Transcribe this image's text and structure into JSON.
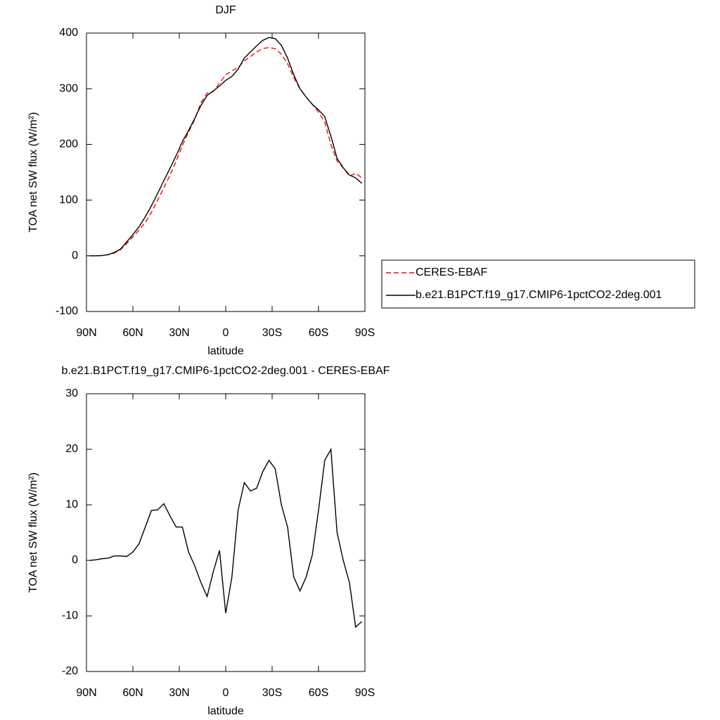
{
  "chart_data": [
    {
      "type": "line",
      "title": "DJF",
      "x_label": "latitude",
      "y_label": "TOA net SW flux (W/m²)",
      "x": [
        88,
        84,
        80,
        76,
        72,
        68,
        64,
        60,
        56,
        52,
        48,
        44,
        40,
        36,
        32,
        28,
        24,
        20,
        16,
        12,
        8,
        4,
        0,
        -4,
        -8,
        -12,
        -16,
        -20,
        -24,
        -28,
        -32,
        -36,
        -40,
        -44,
        -48,
        -52,
        -56,
        -60,
        -64,
        -68,
        -72,
        -76,
        -80,
        -84,
        -88
      ],
      "series": [
        {
          "name": "CERES-EBAF",
          "color": "#ff0000",
          "line_style": "dashed",
          "values": [
            0,
            0,
            0.5,
            2,
            5,
            11,
            22,
            34,
            46,
            60,
            78,
            100,
            122,
            145,
            170,
            198,
            222,
            245,
            275,
            292,
            295,
            310,
            325,
            332,
            338,
            350,
            358,
            366,
            372,
            374,
            372,
            362,
            345,
            320,
            300,
            285,
            272,
            258,
            240,
            200,
            170,
            158,
            143,
            148,
            140
          ]
        },
        {
          "name": "b.e21.B1PCT.f19_g17.CMIP6-1pctCO2-2deg.001",
          "color": "#000000",
          "line_style": "solid",
          "values": [
            0,
            0,
            0.5,
            2,
            6,
            12,
            25,
            38,
            52,
            70,
            90,
            112,
            135,
            157,
            180,
            205,
            225,
            247,
            270,
            288,
            296,
            305,
            315,
            322,
            335,
            355,
            366,
            377,
            387,
            392,
            390,
            378,
            355,
            325,
            300,
            285,
            272,
            262,
            250,
            215,
            175,
            158,
            145,
            140,
            130
          ]
        }
      ],
      "xlim": [
        90,
        -90
      ],
      "xticks": [
        {
          "value": 90,
          "label": "90N"
        },
        {
          "value": 60,
          "label": "60N"
        },
        {
          "value": 30,
          "label": "30N"
        },
        0,
        {
          "value": -30,
          "label": "30S"
        },
        {
          "value": -60,
          "label": "60S"
        },
        {
          "value": -90,
          "label": "90S"
        }
      ],
      "ylim": [
        -100,
        400
      ],
      "yticks": [
        -100,
        0,
        100,
        200,
        300,
        400
      ],
      "legend": "right"
    },
    {
      "type": "line",
      "title": "b.e21.B1PCT.f19_g17.CMIP6-1pctCO2-2deg.001 - CERES-EBAF",
      "x_label": "latitude",
      "y_label": "TOA net SW flux (W/m²)",
      "x": [
        88,
        84,
        80,
        76,
        72,
        68,
        64,
        60,
        56,
        52,
        48,
        44,
        40,
        36,
        32,
        28,
        24,
        20,
        16,
        12,
        8,
        4,
        0,
        -4,
        -8,
        -12,
        -16,
        -20,
        -24,
        -28,
        -32,
        -36,
        -40,
        -44,
        -48,
        -52,
        -56,
        -60,
        -64,
        -68,
        -72,
        -76,
        -80,
        -84,
        -88
      ],
      "series": [
        {
          "name": null,
          "color": "#000000",
          "line_style": "solid",
          "values": [
            0,
            0.1,
            0.3,
            0.4,
            0.8,
            0.8,
            0.7,
            1.5,
            3,
            6,
            9,
            9.1,
            10.2,
            8,
            6,
            6,
            1.5,
            -1,
            -4,
            -6.5,
            -2,
            1.8,
            -9.5,
            -3,
            9,
            14,
            12.5,
            13,
            16,
            18,
            16.5,
            10,
            6,
            -3,
            -5.5,
            -3,
            1,
            9,
            18,
            20,
            5,
            0,
            -4,
            -12,
            -11
          ]
        }
      ],
      "xlim": [
        90,
        -90
      ],
      "xticks": [
        {
          "value": 90,
          "label": "90N"
        },
        {
          "value": 60,
          "label": "60N"
        },
        {
          "value": 30,
          "label": "30N"
        },
        0,
        {
          "value": -30,
          "label": "30S"
        },
        {
          "value": -60,
          "label": "60S"
        },
        {
          "value": -90,
          "label": "90S"
        }
      ],
      "ylim": [
        -20,
        30
      ],
      "yticks": [
        -20,
        -10,
        0,
        10,
        20,
        30
      ]
    }
  ]
}
